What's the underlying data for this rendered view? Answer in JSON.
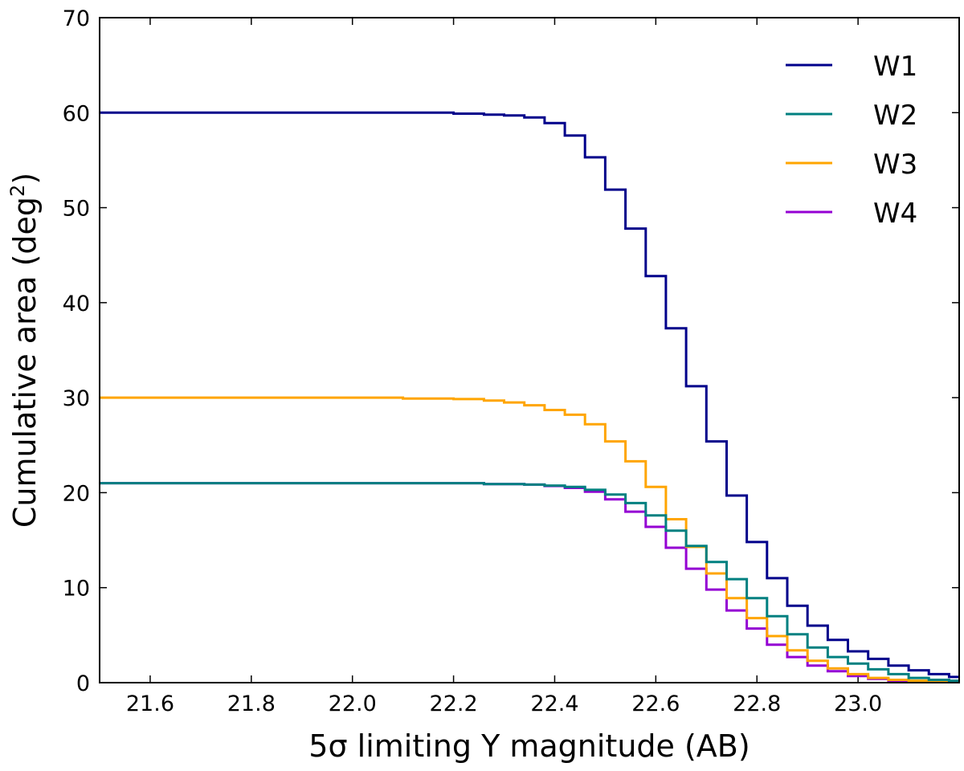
{
  "chart_data": {
    "type": "line",
    "step": true,
    "title": "",
    "xlabel": "5σ limiting Y magnitude (AB)",
    "ylabel": "Cumulative area (deg",
    "ylabel_superscript": "2",
    "ylabel_suffix": ")",
    "xlim": [
      21.5,
      23.2
    ],
    "ylim": [
      0,
      70
    ],
    "xticks": [
      21.6,
      21.8,
      22.0,
      22.2,
      22.4,
      22.6,
      22.8,
      23.0
    ],
    "xtick_labels": [
      "21.6",
      "21.8",
      "22.0",
      "22.2",
      "22.4",
      "22.6",
      "22.8",
      "23.0"
    ],
    "yticks": [
      0,
      10,
      20,
      30,
      40,
      50,
      60,
      70
    ],
    "ytick_labels": [
      "0",
      "10",
      "20",
      "30",
      "40",
      "50",
      "60",
      "70"
    ],
    "grid": false,
    "legend_position": "top-right",
    "x": [
      21.5,
      22.1,
      22.2,
      22.26,
      22.3,
      22.34,
      22.38,
      22.42,
      22.46,
      22.5,
      22.54,
      22.58,
      22.62,
      22.66,
      22.7,
      22.74,
      22.78,
      22.82,
      22.86,
      22.9,
      22.94,
      22.98,
      23.02,
      23.06,
      23.1,
      23.14,
      23.18,
      23.2
    ],
    "series": [
      {
        "name": "W1",
        "color": "#00008b",
        "values": [
          60.0,
          60.0,
          59.9,
          59.8,
          59.7,
          59.5,
          58.9,
          57.6,
          55.3,
          51.9,
          47.8,
          42.8,
          37.3,
          31.2,
          25.4,
          19.7,
          14.8,
          11.0,
          8.1,
          6.0,
          4.5,
          3.3,
          2.5,
          1.8,
          1.3,
          0.9,
          0.6,
          0.6
        ]
      },
      {
        "name": "W2",
        "color": "#008080",
        "values": [
          21.0,
          21.0,
          21.0,
          20.9,
          20.9,
          20.85,
          20.75,
          20.6,
          20.3,
          19.8,
          18.9,
          17.6,
          16.0,
          14.4,
          12.7,
          10.9,
          8.9,
          7.0,
          5.1,
          3.7,
          2.7,
          2.0,
          1.4,
          0.9,
          0.5,
          0.3,
          0.2,
          0.2
        ]
      },
      {
        "name": "W3",
        "color": "#ffa500",
        "values": [
          30.0,
          29.9,
          29.85,
          29.7,
          29.5,
          29.2,
          28.7,
          28.2,
          27.2,
          25.4,
          23.3,
          20.6,
          17.2,
          14.3,
          11.5,
          8.9,
          6.8,
          4.9,
          3.4,
          2.3,
          1.5,
          0.9,
          0.5,
          0.3,
          0.2,
          0.1,
          0.1,
          0.1
        ]
      },
      {
        "name": "W4",
        "color": "#9400d3",
        "values": [
          21.0,
          21.0,
          21.0,
          20.9,
          20.9,
          20.85,
          20.7,
          20.5,
          20.1,
          19.3,
          18.0,
          16.4,
          14.2,
          12.0,
          9.8,
          7.6,
          5.7,
          4.0,
          2.7,
          1.8,
          1.2,
          0.7,
          0.4,
          0.2,
          0.1,
          0.1,
          0.0,
          0.0
        ]
      }
    ]
  }
}
